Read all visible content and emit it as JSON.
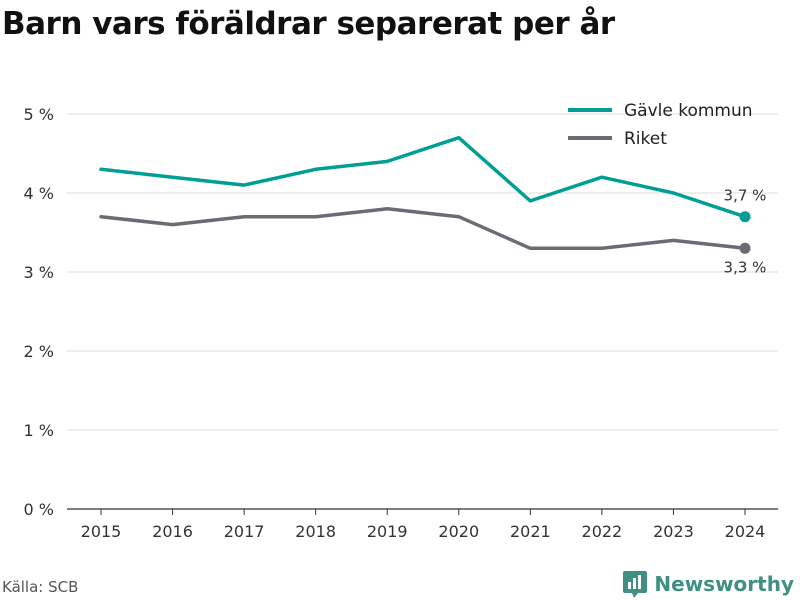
{
  "title": "Barn vars föräldrar separerat per år",
  "source": "Källa: SCB",
  "brand": "Newsworthy",
  "colors": {
    "gavle": "#009e94",
    "riket": "#6b6b73",
    "grid": "#dddddd",
    "axis": "#333333",
    "brand": "#3f8f83"
  },
  "chart_data": {
    "type": "line",
    "title": "Barn vars föräldrar separerat per år",
    "x": [
      "2015",
      "2016",
      "2017",
      "2018",
      "2019",
      "2020",
      "2021",
      "2022",
      "2023",
      "2024"
    ],
    "ylim": [
      0,
      5
    ],
    "yticks": [
      "0 %",
      "1 %",
      "2 %",
      "3 %",
      "4 %",
      "5 %"
    ],
    "grid": true,
    "legend_position": "top-right",
    "series": [
      {
        "name": "Gävle kommun",
        "values": [
          4.3,
          4.2,
          4.1,
          4.3,
          4.4,
          4.7,
          3.9,
          4.2,
          4.0,
          3.7
        ],
        "end_label": "3,7 %"
      },
      {
        "name": "Riket",
        "values": [
          3.7,
          3.6,
          3.7,
          3.7,
          3.8,
          3.7,
          3.3,
          3.3,
          3.4,
          3.3
        ],
        "end_label": "3,3 %"
      }
    ]
  }
}
